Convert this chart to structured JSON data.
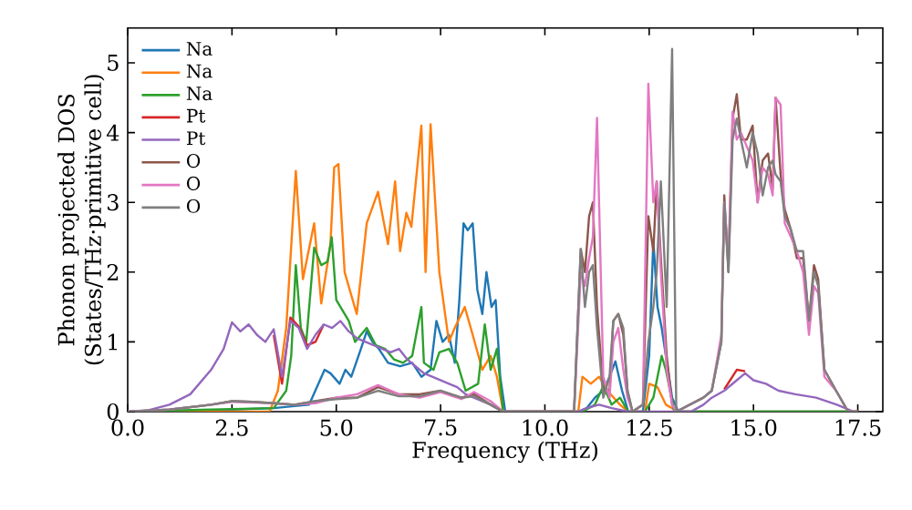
{
  "chart_data": {
    "type": "line",
    "xlabel": "Frequency (THz)",
    "ylabel": "Phonon projected DOS (States/THz·primitive cell)",
    "xlim": [
      0,
      18.1
    ],
    "ylim": [
      0,
      5.5
    ],
    "xticks": [
      {
        "value": 0,
        "label": "0.0"
      },
      {
        "value": 2.5,
        "label": "2.5"
      },
      {
        "value": 5,
        "label": "5.0"
      },
      {
        "value": 7.5,
        "label": "7.5"
      },
      {
        "value": 10,
        "label": "10.0"
      },
      {
        "value": 12.5,
        "label": "12.5"
      },
      {
        "value": 15,
        "label": "15.0"
      },
      {
        "value": 17.5,
        "label": "17.5"
      }
    ],
    "yticks": [
      0,
      1,
      2,
      3,
      4,
      5
    ],
    "grid": false,
    "legend": "top left",
    "series": [
      {
        "name": "Na",
        "color": "#1f77b4",
        "x": [
          0,
          2,
          3.5,
          4.0,
          4.35,
          4.72,
          4.86,
          5.08,
          5.22,
          5.36,
          5.59,
          5.73,
          5.87,
          6.02,
          6.24,
          6.53,
          6.82,
          7.04,
          7.26,
          7.4,
          7.55,
          7.7,
          7.84,
          7.95,
          8.05,
          8.15,
          8.27,
          8.38,
          8.5,
          8.6,
          8.72,
          8.82,
          8.93,
          9.05,
          10.8,
          11.0,
          11.2,
          11.4,
          11.55,
          11.69,
          11.85,
          12.0,
          12.35,
          12.5,
          12.6,
          12.7,
          12.8,
          12.9,
          13.05,
          13.2,
          17.5
        ],
        "values": [
          0,
          0.02,
          0.05,
          0.08,
          0.1,
          0.6,
          0.55,
          0.4,
          0.6,
          0.5,
          0.9,
          1.15,
          1.0,
          0.9,
          0.7,
          0.65,
          0.7,
          0.5,
          0.6,
          1.3,
          1.0,
          1.1,
          0.7,
          1.6,
          2.7,
          2.6,
          2.7,
          1.75,
          1.4,
          2.0,
          1.5,
          1.6,
          0.5,
          0,
          0,
          0.05,
          0.2,
          0.3,
          0.5,
          0.72,
          0.3,
          0,
          0,
          0.8,
          2.45,
          1.5,
          1.2,
          0.8,
          0.2,
          0,
          0
        ]
      },
      {
        "name": "Na",
        "color": "#ff7f0e",
        "x": [
          0,
          3.4,
          3.6,
          3.8,
          4.03,
          4.2,
          4.47,
          4.64,
          4.86,
          4.95,
          5.05,
          5.2,
          5.49,
          5.73,
          6.0,
          6.24,
          6.41,
          6.53,
          6.68,
          6.8,
          7.04,
          7.14,
          7.26,
          7.47,
          7.7,
          7.84,
          8.08,
          8.27,
          8.5,
          8.7,
          8.85,
          9.0,
          10.8,
          10.9,
          11.1,
          11.3,
          11.5,
          11.8,
          12.0,
          12.4,
          12.5,
          12.7,
          12.9,
          13.2,
          17.5
        ],
        "values": [
          0,
          0,
          0.3,
          1.2,
          3.45,
          1.9,
          2.7,
          1.55,
          2.4,
          3.5,
          3.55,
          2.0,
          1.4,
          2.7,
          3.15,
          2.4,
          3.3,
          2.3,
          2.85,
          2.65,
          4.1,
          2.0,
          4.12,
          2.0,
          1.0,
          1.2,
          1.5,
          1.1,
          0.6,
          0.8,
          0.5,
          0,
          0,
          0.5,
          0.4,
          0.5,
          0.3,
          0.1,
          0,
          0,
          0.4,
          0.35,
          0.1,
          0,
          0
        ]
      },
      {
        "name": "Na",
        "color": "#2ca02c",
        "x": [
          0,
          2,
          3.5,
          3.8,
          3.92,
          4.03,
          4.15,
          4.28,
          4.47,
          4.64,
          4.79,
          4.89,
          5.0,
          5.3,
          5.45,
          5.59,
          5.73,
          5.95,
          6.17,
          6.38,
          6.6,
          6.82,
          7.04,
          7.1,
          7.33,
          7.47,
          7.7,
          7.9,
          8.1,
          8.4,
          8.56,
          8.7,
          8.85,
          9.0,
          10.9,
          11.2,
          11.4,
          11.6,
          11.8,
          12.0,
          12.4,
          12.6,
          12.8,
          12.9,
          13.1,
          17.5
        ],
        "values": [
          0,
          0.03,
          0.05,
          0.3,
          0.8,
          2.1,
          1.2,
          1.0,
          2.35,
          2.1,
          2.15,
          2.5,
          1.6,
          1.3,
          1.0,
          1.1,
          1.2,
          0.95,
          0.9,
          0.75,
          0.7,
          0.8,
          1.5,
          0.7,
          0.6,
          0.85,
          0.9,
          0.7,
          0.3,
          0.4,
          1.25,
          0.6,
          0.9,
          0,
          0,
          0.1,
          0.37,
          0.1,
          0.2,
          0,
          0,
          0.2,
          0.8,
          0.6,
          0,
          0
        ]
      },
      {
        "name": "Pt",
        "color": "#d62728",
        "x": [
          3.5,
          3.7,
          3.9,
          4.1,
          4.3,
          4.5,
          4.7,
          9.0,
          14.3,
          14.6,
          14.8
        ],
        "values": [
          1.1,
          0.4,
          1.35,
          1.22,
          0.95,
          1.0,
          1.25,
          null,
          0.32,
          0.6,
          0.58
        ]
      },
      {
        "name": "Pt",
        "color": "#9467bd",
        "x": [
          0,
          0.5,
          1.0,
          1.5,
          2.0,
          2.3,
          2.5,
          2.7,
          2.9,
          3.1,
          3.3,
          3.5,
          3.7,
          3.9,
          4.1,
          4.3,
          4.5,
          4.7,
          4.9,
          5.1,
          5.3,
          5.5,
          5.7,
          5.9,
          6.1,
          6.3,
          6.5,
          6.7,
          6.9,
          7.1,
          7.3,
          7.5,
          7.7,
          7.9,
          8.1,
          8.3,
          8.5,
          8.7,
          9.0,
          10.8,
          11.0,
          11.3,
          11.6,
          12.0,
          13.5,
          13.8,
          14.0,
          14.3,
          14.6,
          14.8,
          15.0,
          15.3,
          15.6,
          16.0,
          16.5,
          17.0,
          17.4
        ],
        "values": [
          0,
          0.02,
          0.1,
          0.25,
          0.6,
          0.9,
          1.28,
          1.15,
          1.25,
          1.1,
          1.0,
          1.18,
          0.5,
          1.3,
          1.2,
          0.9,
          1.1,
          1.25,
          1.2,
          1.3,
          1.15,
          1.05,
          1.0,
          0.95,
          0.9,
          0.85,
          0.9,
          0.75,
          0.65,
          0.55,
          0.5,
          0.45,
          0.4,
          0.35,
          0.25,
          0.2,
          0.15,
          0.1,
          0,
          0,
          0.05,
          0.1,
          0.05,
          0,
          0,
          0.1,
          0.2,
          0.3,
          0.45,
          0.55,
          0.45,
          0.4,
          0.3,
          0.25,
          0.2,
          0.1,
          0
        ]
      },
      {
        "name": "O",
        "color": "#8c564b",
        "x": [
          0,
          1,
          2,
          2.5,
          3,
          3.5,
          4,
          4.5,
          5,
          5.5,
          6,
          6.5,
          7,
          7.5,
          8,
          8.3,
          8.7,
          9.0,
          10.7,
          10.86,
          10.96,
          11.06,
          11.15,
          11.25,
          11.4,
          11.55,
          11.64,
          11.76,
          11.88,
          11.98,
          12.1,
          12.35,
          12.48,
          12.6,
          12.68,
          12.78,
          12.92,
          13.05,
          13.15,
          13.8,
          14.0,
          14.23,
          14.3,
          14.4,
          14.5,
          14.6,
          14.7,
          14.84,
          14.98,
          15.1,
          15.22,
          15.35,
          15.46,
          15.53,
          15.65,
          15.75,
          15.9,
          16.04,
          16.19,
          16.33,
          16.45,
          16.55,
          16.7,
          16.98,
          17.27,
          17.5
        ],
        "values": [
          0,
          0.03,
          0.1,
          0.15,
          0.14,
          0.12,
          0.1,
          0.15,
          0.2,
          0.2,
          0.35,
          0.25,
          0.25,
          0.3,
          0.2,
          0.25,
          0.1,
          0,
          0,
          2.33,
          2.0,
          2.8,
          3.0,
          1.5,
          0.3,
          0.3,
          1.3,
          1.4,
          1.1,
          0.3,
          0,
          0.1,
          2.8,
          2.3,
          3.3,
          2.2,
          0.8,
          0.1,
          0,
          0.2,
          0.3,
          1.0,
          3.1,
          2.0,
          4.2,
          4.55,
          3.9,
          3.9,
          4.1,
          3.0,
          3.6,
          3.7,
          3.2,
          4.5,
          3.4,
          2.9,
          2.6,
          2.2,
          2.2,
          1.3,
          2.1,
          1.9,
          0.6,
          0.3,
          0,
          0
        ]
      },
      {
        "name": "O",
        "color": "#e377c2",
        "x": [
          0,
          1,
          2,
          2.5,
          3,
          3.5,
          4,
          4.5,
          5,
          5.5,
          6,
          6.5,
          7,
          7.5,
          8,
          8.3,
          8.7,
          9.0,
          10.7,
          10.86,
          10.96,
          11.06,
          11.15,
          11.25,
          11.4,
          11.55,
          11.64,
          11.76,
          11.88,
          11.98,
          12.1,
          12.35,
          12.48,
          12.6,
          12.68,
          12.78,
          12.92,
          13.05,
          13.15,
          13.8,
          14.0,
          14.23,
          14.3,
          14.4,
          14.5,
          14.6,
          14.7,
          14.84,
          14.98,
          15.1,
          15.22,
          15.35,
          15.46,
          15.53,
          15.65,
          15.75,
          15.9,
          16.04,
          16.19,
          16.33,
          16.45,
          16.55,
          16.7,
          16.98,
          17.27,
          17.5
        ],
        "values": [
          0,
          0.03,
          0.1,
          0.14,
          0.13,
          0.12,
          0.1,
          0.12,
          0.2,
          0.25,
          0.38,
          0.25,
          0.2,
          0.28,
          0.18,
          0.28,
          0.15,
          0,
          0,
          2.0,
          1.8,
          2.2,
          2.5,
          4.21,
          0.5,
          0.2,
          1.0,
          1.2,
          0.6,
          0.2,
          0,
          0.1,
          4.7,
          3.0,
          3.3,
          2.0,
          0.6,
          0.1,
          0,
          0.2,
          0.3,
          1.1,
          3.0,
          2.2,
          4.3,
          3.9,
          4.0,
          3.8,
          3.6,
          3.0,
          3.5,
          3.4,
          3.1,
          4.5,
          4.4,
          2.7,
          2.5,
          2.3,
          2.0,
          1.1,
          1.8,
          1.7,
          0.5,
          0.3,
          0,
          0
        ]
      },
      {
        "name": "O",
        "color": "#7f7f7f",
        "x": [
          0,
          1,
          2,
          2.5,
          3,
          3.5,
          4,
          4.5,
          5,
          5.5,
          6,
          6.5,
          7,
          7.5,
          8,
          8.3,
          8.7,
          9.0,
          10.7,
          10.86,
          10.96,
          11.06,
          11.15,
          11.25,
          11.4,
          11.55,
          11.64,
          11.76,
          11.88,
          11.98,
          12.1,
          12.35,
          12.48,
          12.6,
          12.68,
          12.78,
          12.92,
          13.05,
          13.15,
          13.8,
          14.0,
          14.23,
          14.3,
          14.4,
          14.5,
          14.6,
          14.7,
          14.84,
          14.98,
          15.1,
          15.22,
          15.35,
          15.46,
          15.53,
          15.65,
          15.75,
          15.9,
          16.04,
          16.19,
          16.33,
          16.45,
          16.55,
          16.7,
          16.98,
          17.27,
          17.5
        ],
        "values": [
          0,
          0.03,
          0.1,
          0.15,
          0.14,
          0.12,
          0.1,
          0.15,
          0.18,
          0.2,
          0.3,
          0.22,
          0.22,
          0.3,
          0.2,
          0.22,
          0.1,
          0,
          0,
          2.33,
          1.5,
          2.0,
          2.1,
          1.2,
          0.2,
          0.5,
          1.3,
          1.4,
          1.2,
          0.3,
          0,
          0.1,
          1.0,
          1.5,
          2.0,
          3.3,
          1.5,
          5.2,
          0,
          0.2,
          0.3,
          1.0,
          3.0,
          2.0,
          3.9,
          4.2,
          3.9,
          3.5,
          4.0,
          3.7,
          3.1,
          3.5,
          3.6,
          3.4,
          3.3,
          2.8,
          2.6,
          2.3,
          2.3,
          1.3,
          2.0,
          1.8,
          0.6,
          0.3,
          0,
          0
        ]
      }
    ]
  }
}
